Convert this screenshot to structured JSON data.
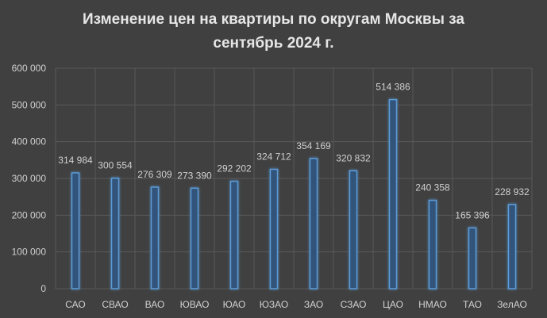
{
  "chart_data": {
    "type": "bar",
    "title_lines": [
      "Изменение цен на квартиры по округам Москвы за",
      "сентябрь 2024 г."
    ],
    "categories": [
      "САО",
      "СВАО",
      "ВАО",
      "ЮВАО",
      "ЮАО",
      "ЮЗАО",
      "ЗАО",
      "СЗАО",
      "ЦАО",
      "НМАО",
      "ТАО",
      "ЗелАО"
    ],
    "values": [
      314984,
      300554,
      276309,
      273390,
      292202,
      324712,
      354169,
      320832,
      514386,
      240358,
      165396,
      228932
    ],
    "data_labels": [
      "314 984",
      "300 554",
      "276 309",
      "273 390",
      "292 202",
      "324 712",
      "354 169",
      "320 832",
      "514 386",
      "240 358",
      "165 396",
      "228 932"
    ],
    "ylim": [
      0,
      600000
    ],
    "yticks": [
      0,
      100000,
      200000,
      300000,
      400000,
      500000,
      600000
    ],
    "ytick_labels": [
      "0",
      "100 000",
      "200 000",
      "300 000",
      "400 000",
      "500 000",
      "600 000"
    ],
    "xlabel": "",
    "ylabel": "",
    "grid": true,
    "legend": "none",
    "colors": {
      "background": "#404040",
      "bar_fill": "#33527a",
      "bar_stroke": "#5b9bd5",
      "text": "#d0d0d0",
      "grid": "#595959"
    }
  }
}
